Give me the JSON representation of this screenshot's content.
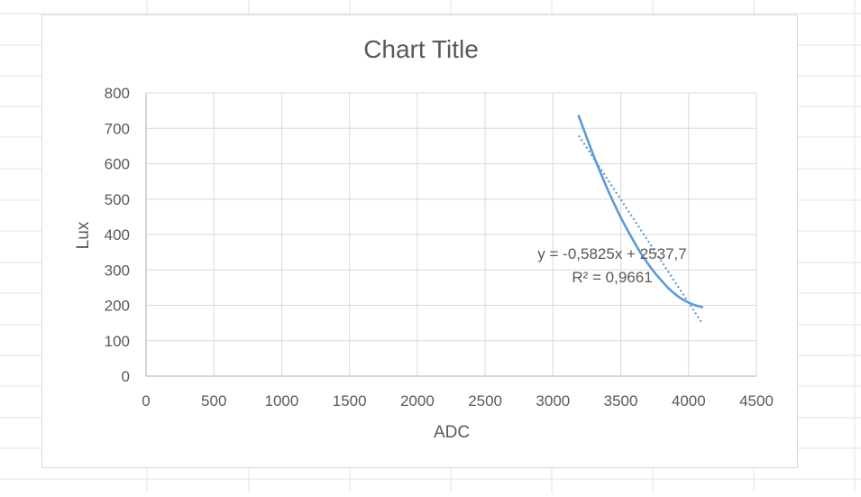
{
  "chart_data": {
    "type": "scatter",
    "title": "Chart Title",
    "xlabel": "ADC",
    "ylabel": "Lux",
    "xlim": [
      0,
      4500
    ],
    "ylim": [
      0,
      800
    ],
    "x_ticks": [
      "0",
      "500",
      "1000",
      "1500",
      "2000",
      "2500",
      "3000",
      "3500",
      "4000",
      "4500"
    ],
    "y_ticks": [
      "0",
      "100",
      "200",
      "300",
      "400",
      "500",
      "600",
      "700",
      "800"
    ],
    "grid": true,
    "legend": "none",
    "series": [
      {
        "style": "smooth-line",
        "color": "#5b9bd5",
        "x": [
          3190,
          3250,
          3300,
          3350,
          3400,
          3450,
          3500,
          3550,
          3600,
          3650,
          3700,
          3750,
          3800,
          3850,
          3900,
          3950,
          4000,
          4050,
          4100
        ],
        "y": [
          735,
          673,
          622,
          575,
          530,
          488,
          448,
          412,
          378,
          346,
          318,
          292,
          270,
          249,
          232,
          218,
          208,
          200,
          195
        ]
      }
    ],
    "trendline": {
      "kind": "linear",
      "style": "dotted",
      "color": "#5b9bd5",
      "slope": -0.5825,
      "intercept": 2537.7,
      "x_range": [
        3190,
        4100
      ]
    },
    "annotations": {
      "equation": "y = -0,5825x + 2537,7",
      "r_squared": "R² = 0,9661"
    }
  }
}
